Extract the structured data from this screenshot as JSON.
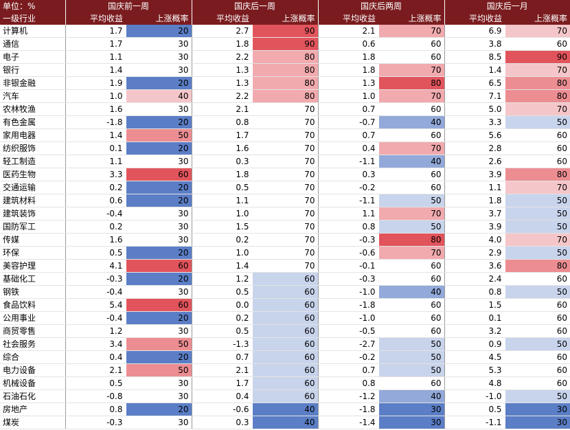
{
  "header": {
    "unit": "单位：%",
    "first_col": "一级行业",
    "groups": [
      {
        "title": "国庆前一周",
        "sub": [
          "平均收益",
          "上涨概率"
        ]
      },
      {
        "title": "国庆后一周",
        "sub": [
          "平均收益",
          "上涨概率"
        ]
      },
      {
        "title": "国庆后两周",
        "sub": [
          "平均收益",
          "上涨概率"
        ]
      },
      {
        "title": "国庆后一月",
        "sub": [
          "平均收益",
          "上涨概率"
        ]
      }
    ]
  },
  "table": {
    "rows": [
      [
        "计算机",
        "1.7",
        "20",
        "2.7",
        "90",
        "2.1",
        "70",
        "6.9",
        "70"
      ],
      [
        "通信",
        "1.7",
        "30",
        "1.8",
        "90",
        "0.6",
        "60",
        "3.8",
        "60"
      ],
      [
        "电子",
        "1.1",
        "30",
        "2.2",
        "80",
        "1.8",
        "60",
        "8.5",
        "90"
      ],
      [
        "银行",
        "1.4",
        "30",
        "1.3",
        "80",
        "1.8",
        "70",
        "1.4",
        "70"
      ],
      [
        "非银金融",
        "1.9",
        "20",
        "1.3",
        "80",
        "1.3",
        "80",
        "6.5",
        "80"
      ],
      [
        "汽车",
        "1.0",
        "40",
        "2.2",
        "80",
        "1.0",
        "70",
        "7.1",
        "80"
      ],
      [
        "农林牧渔",
        "1.6",
        "30",
        "2.1",
        "70",
        "0.7",
        "60",
        "5.0",
        "70"
      ],
      [
        "有色金属",
        "-1.8",
        "20",
        "0.8",
        "70",
        "-0.7",
        "40",
        "3.3",
        "50"
      ],
      [
        "家用电器",
        "1.4",
        "50",
        "1.7",
        "70",
        "0.7",
        "60",
        "5.6",
        "60"
      ],
      [
        "纺织服饰",
        "0.1",
        "20",
        "1.6",
        "70",
        "0.4",
        "70",
        "2.8",
        "60"
      ],
      [
        "轻工制造",
        "1.1",
        "30",
        "0.3",
        "70",
        "-1.1",
        "40",
        "2.6",
        "60"
      ],
      [
        "医药生物",
        "3.3",
        "60",
        "1.8",
        "70",
        "0.3",
        "60",
        "3.9",
        "80"
      ],
      [
        "交通运输",
        "0.2",
        "20",
        "0.5",
        "70",
        "-0.2",
        "60",
        "1.1",
        "70"
      ],
      [
        "建筑材料",
        "0.6",
        "20",
        "1.1",
        "70",
        "-1.1",
        "50",
        "1.8",
        "50"
      ],
      [
        "建筑装饰",
        "-0.4",
        "30",
        "1.0",
        "70",
        "1.1",
        "70",
        "3.7",
        "50"
      ],
      [
        "国防军工",
        "0.2",
        "30",
        "1.5",
        "70",
        "0.8",
        "50",
        "3.9",
        "50"
      ],
      [
        "传媒",
        "1.6",
        "30",
        "0.2",
        "70",
        "-0.3",
        "80",
        "4.0",
        "70"
      ],
      [
        "环保",
        "0.5",
        "20",
        "1.0",
        "70",
        "-0.6",
        "70",
        "2.9",
        "50"
      ],
      [
        "美容护理",
        "4.1",
        "60",
        "1.4",
        "70",
        "-0.1",
        "60",
        "3.6",
        "80"
      ],
      [
        "基础化工",
        "-0.3",
        "20",
        "1.2",
        "60",
        "-0.3",
        "60",
        "2.4",
        "60"
      ],
      [
        "钢铁",
        "-0.4",
        "30",
        "0.5",
        "60",
        "-1.0",
        "40",
        "0.8",
        "50"
      ],
      [
        "食品饮料",
        "5.4",
        "60",
        "0.0",
        "60",
        "-1.8",
        "60",
        "1.5",
        "60"
      ],
      [
        "公用事业",
        "-0.4",
        "20",
        "0.2",
        "60",
        "-1.0",
        "60",
        "0.1",
        "60"
      ],
      [
        "商贸零售",
        "1.2",
        "30",
        "0.5",
        "60",
        "-0.5",
        "60",
        "3.2",
        "60"
      ],
      [
        "社会服务",
        "3.4",
        "50",
        "-1.3",
        "60",
        "-2.7",
        "50",
        "0.9",
        "50"
      ],
      [
        "综合",
        "0.4",
        "20",
        "0.7",
        "60",
        "-0.2",
        "50",
        "4.5",
        "60"
      ],
      [
        "电力设备",
        "2.1",
        "50",
        "2.1",
        "60",
        "0.7",
        "50",
        "5.3",
        "60"
      ],
      [
        "机械设备",
        "0.5",
        "30",
        "1.7",
        "60",
        "0.8",
        "60",
        "4.8",
        "60"
      ],
      [
        "石油石化",
        "-0.8",
        "30",
        "0.4",
        "60",
        "-1.2",
        "40",
        "-1.0",
        "50"
      ],
      [
        "房地产",
        "0.8",
        "20",
        "-0.6",
        "40",
        "-1.8",
        "30",
        "0.5",
        "30"
      ],
      [
        "煤炭",
        "-0.3",
        "30",
        "0.3",
        "40",
        "-1.4",
        "30",
        "-1.1",
        "30"
      ]
    ]
  }
}
